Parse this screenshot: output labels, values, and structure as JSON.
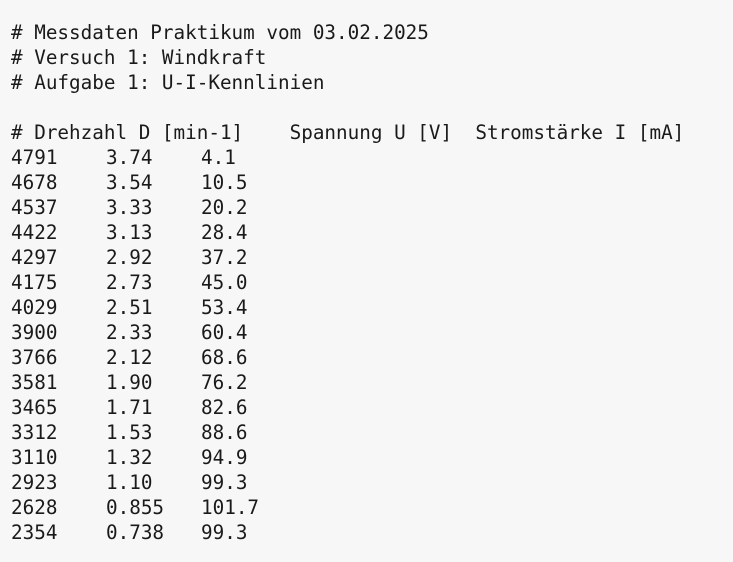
{
  "header": {
    "line1": "# Messdaten Praktikum vom 03.02.2025",
    "line2": "# Versuch 1: Windkraft",
    "line3": "# Aufgabe 1: U-I-Kennlinien"
  },
  "columns_line": "# Drehzahl D [min-1]    Spannung U [V]  Stromstärke I [mA]",
  "rows": [
    [
      "4791",
      "3.74",
      "4.1"
    ],
    [
      "4678",
      "3.54",
      "10.5"
    ],
    [
      "4537",
      "3.33",
      "20.2"
    ],
    [
      "4422",
      "3.13",
      "28.4"
    ],
    [
      "4297",
      "2.92",
      "37.2"
    ],
    [
      "4175",
      "2.73",
      "45.0"
    ],
    [
      "4029",
      "2.51",
      "53.4"
    ],
    [
      "3900",
      "2.33",
      "60.4"
    ],
    [
      "3766",
      "2.12",
      "68.6"
    ],
    [
      "3581",
      "1.90",
      "76.2"
    ],
    [
      "3465",
      "1.71",
      "82.6"
    ],
    [
      "3312",
      "1.53",
      "88.6"
    ],
    [
      "3110",
      "1.32",
      "94.9"
    ],
    [
      "2923",
      "1.10",
      "99.3"
    ],
    [
      "2628",
      "0.855",
      "101.7"
    ],
    [
      "2354",
      "0.738",
      "99.3"
    ]
  ]
}
